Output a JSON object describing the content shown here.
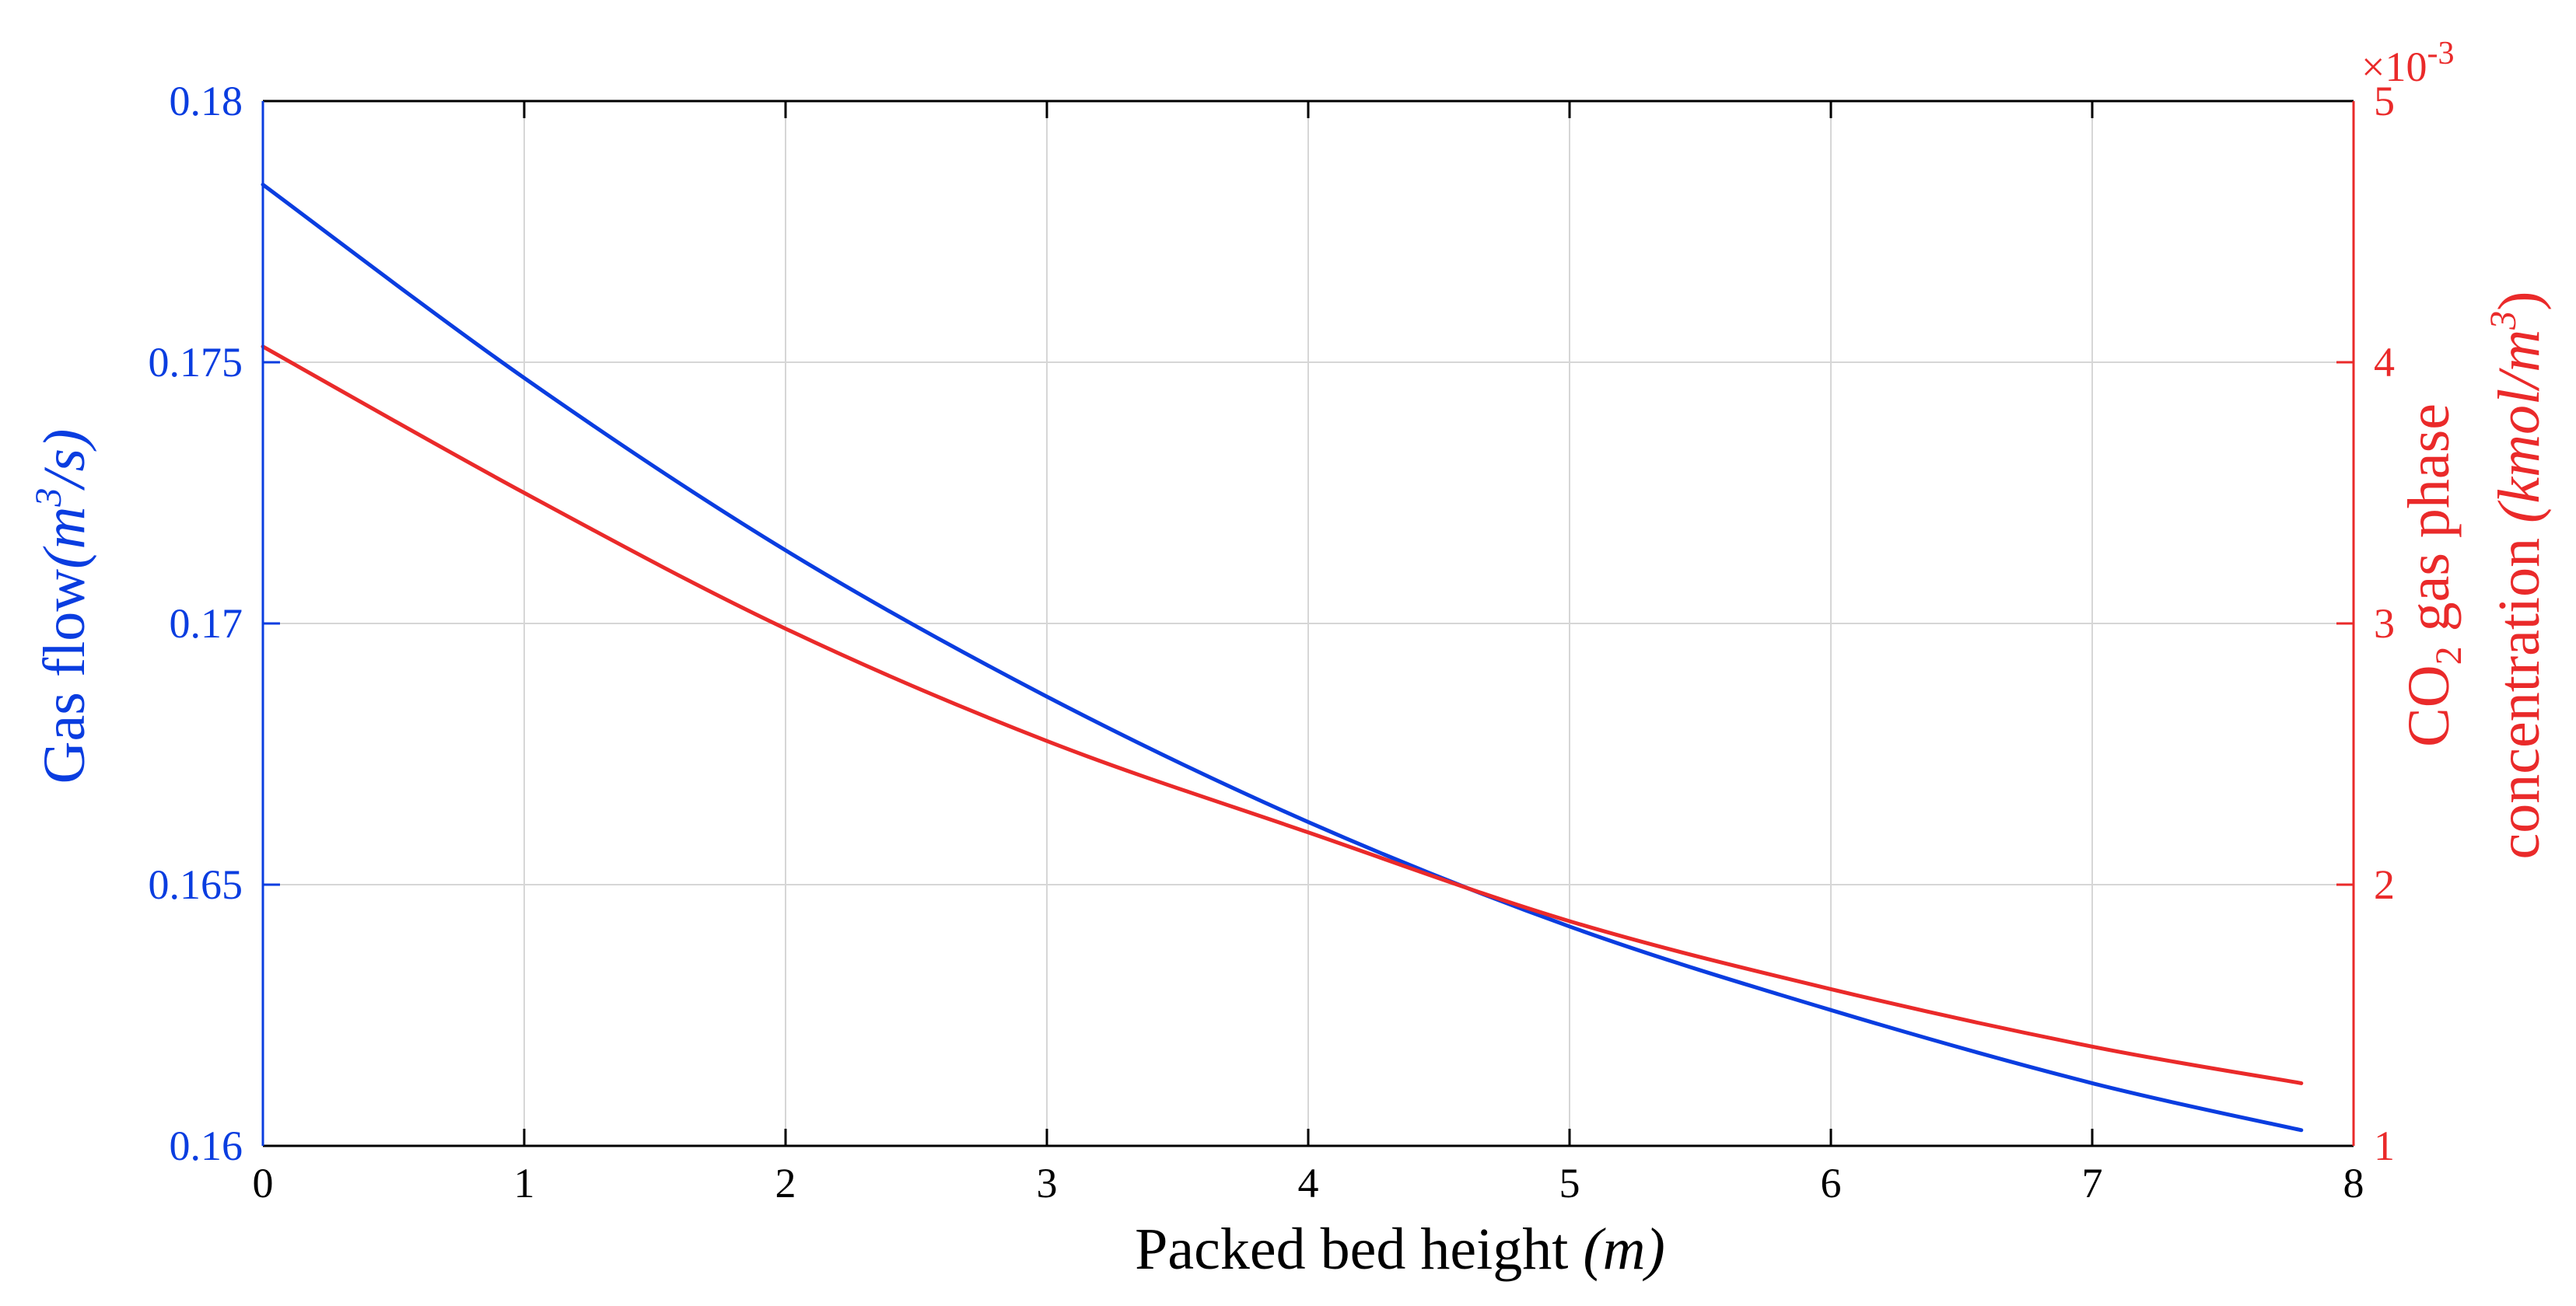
{
  "chart_data": {
    "type": "line",
    "title": "",
    "xlabel": {
      "main": "Packed bed height ",
      "unit": "(m)"
    },
    "ylabel_left": {
      "main": "Gas flow",
      "unit_base": "(m",
      "unit_sup": "3",
      "unit_end": "/s)"
    },
    "ylabel_right": {
      "line1": "CO",
      "line1_sub": "2",
      "line1_rest": " gas phase",
      "line2_main": "concentration ",
      "line2_unit_base": "(kmol/m",
      "line2_unit_sup": "3",
      "line2_unit_end": ")"
    },
    "right_exponent_label": {
      "base": "×10",
      "exp": "-3"
    },
    "xlim": [
      0,
      8
    ],
    "ylim_left": [
      0.16,
      0.18
    ],
    "ylim_right": [
      1,
      5
    ],
    "x_ticks": [
      "0",
      "1",
      "2",
      "3",
      "4",
      "5",
      "6",
      "7",
      "8"
    ],
    "y_left_ticks": [
      "0.16",
      "0.165",
      "0.17",
      "0.175",
      "0.18"
    ],
    "y_right_ticks": [
      "1",
      "2",
      "3",
      "4",
      "5"
    ],
    "grid": true,
    "colors": {
      "left": "#0a3de0",
      "right": "#ea2a2a",
      "grid": "#d6d6d6",
      "axis": "#000000"
    },
    "series": [
      {
        "name": "Gas flow",
        "axis": "left",
        "color": "#0a3de0",
        "x": [
          0,
          1,
          2,
          3,
          4,
          5,
          6,
          7,
          7.8
        ],
        "values": [
          0.1784,
          0.1747,
          0.1714,
          0.1686,
          0.1662,
          0.1642,
          0.1626,
          0.1612,
          0.1603
        ]
      },
      {
        "name": "CO2 gas phase concentration",
        "axis": "right",
        "color": "#ea2a2a",
        "x": [
          0,
          1,
          2,
          3,
          4,
          5,
          6,
          7,
          7.8
        ],
        "values": [
          4.06,
          3.5,
          2.98,
          2.55,
          2.2,
          1.86,
          1.6,
          1.38,
          1.24
        ]
      }
    ]
  }
}
